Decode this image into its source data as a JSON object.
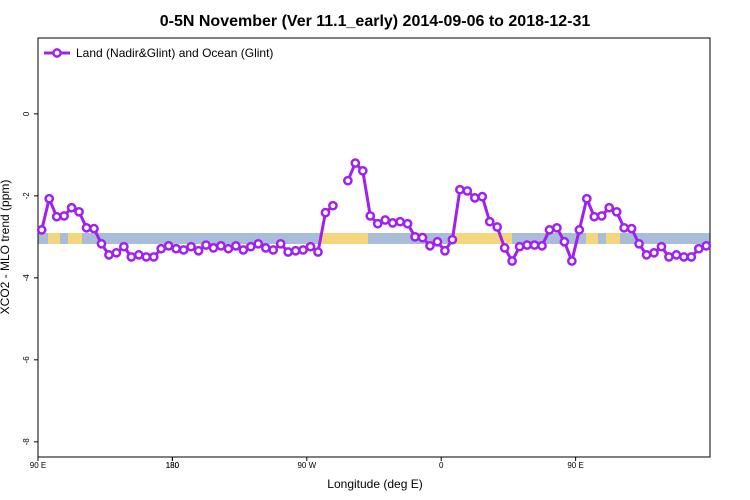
{
  "chart_data": {
    "type": "line",
    "title": "0-5N November (Ver 11.1_early)   2014-09-06 to 2018-12-31",
    "x_label": "Longitude (deg E)",
    "y_label": "XCO2 - MLO trend (ppm)",
    "x": [
      92.5,
      97.5,
      102.5,
      107.5,
      112.5,
      117.5,
      122.5,
      127.5,
      132.5,
      137.5,
      142.5,
      147.5,
      152.5,
      157.5,
      162.5,
      167.5,
      172.5,
      177.5,
      182.5,
      187.5,
      192.5,
      197.5,
      202.5,
      207.5,
      212.5,
      217.5,
      222.5,
      227.5,
      232.5,
      237.5,
      242.5,
      247.5,
      252.5,
      257.5,
      262.5,
      267.5,
      272.5,
      277.5,
      282.5,
      287.5,
      292.5,
      297.5,
      302.5,
      307.5,
      312.5,
      317.5,
      322.5,
      327.5,
      332.5,
      337.5,
      342.5,
      347.5,
      352.5,
      357.5,
      362.5,
      367.5,
      372.5,
      377.5,
      382.5,
      387.5,
      392.5,
      397.5,
      402.5,
      407.5,
      412.5,
      417.5,
      422.5,
      427.5,
      432.5,
      437.5,
      442.5,
      447.5,
      452.5,
      457.5,
      462.5,
      467.5,
      472.5,
      477.5,
      482.5,
      487.5,
      492.5,
      497.5,
      502.5,
      507.5,
      512.5,
      517.5,
      522.5,
      527.5,
      532.5,
      537.5
    ],
    "series": [
      {
        "name": "Land (Nadir&Glint) and Ocean (Glint)",
        "color": "#a020f0",
        "values": [
          -2.83,
          -2.07,
          -2.51,
          -2.49,
          -2.29,
          -2.39,
          -2.78,
          -2.8,
          -3.17,
          -3.44,
          -3.39,
          -3.24,
          -3.49,
          -3.44,
          -3.49,
          -3.49,
          -3.29,
          -3.22,
          -3.29,
          -3.32,
          -3.24,
          -3.34,
          -3.2,
          -3.27,
          -3.22,
          -3.29,
          -3.22,
          -3.32,
          -3.24,
          -3.17,
          -3.27,
          -3.32,
          -3.17,
          -3.37,
          -3.34,
          -3.32,
          -3.24,
          -3.37,
          -2.41,
          -2.24,
          null,
          -1.63,
          -1.2,
          -1.39,
          -2.49,
          -2.68,
          -2.59,
          -2.66,
          -2.63,
          -2.68,
          -3.0,
          -3.02,
          -3.22,
          -3.12,
          -3.34,
          -3.07,
          -1.85,
          -1.88,
          -2.05,
          -2.02,
          -2.63,
          -2.76,
          -3.27,
          -3.59,
          -3.24,
          -3.2,
          -3.2,
          -3.22,
          -2.83,
          -2.78,
          -3.12,
          -3.59,
          -2.83,
          -2.07,
          -2.51,
          -2.49,
          -2.29,
          -2.39,
          -2.78,
          -2.8,
          -3.17,
          -3.44,
          -3.39,
          -3.24,
          -3.49,
          -3.44,
          -3.49,
          -3.49,
          -3.29,
          -3.22
        ]
      }
    ],
    "xlim": [
      90,
      540
    ],
    "xticks": [
      {
        "value": 90,
        "label": "90 E"
      },
      180,
      {
        "value": 270,
        "label": "90 W"
      },
      {
        "value": 360,
        "label": "0"
      },
      {
        "value": 450,
        "label": "90 E"
      },
      180.0001
    ],
    "ylim": [
      -8.37,
      1.85
    ],
    "yticks": [
      0,
      -2,
      -4,
      -6,
      -8
    ],
    "legend": "top-left"
  }
}
